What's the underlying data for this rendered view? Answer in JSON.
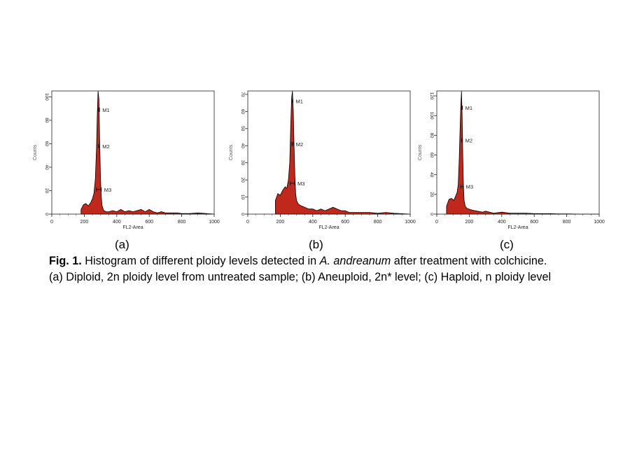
{
  "caption": {
    "lead": "Fig. 1.",
    "text1": " Histogram of different ploidy levels detected in ",
    "species": "A. andreanum",
    "text2": " after treatment with colchicine.",
    "line2": "(a) Diploid, 2n ploidy level from untreated sample; (b) Aneuploid, 2n* level; (c) Haploid, n ploidy level"
  },
  "chart_data": [
    {
      "type": "area",
      "panel_label": "(a)",
      "xlabel": "FL2-Area",
      "ylabel": "Counts",
      "xlim": [
        0,
        1000
      ],
      "ylim": [
        0,
        105
      ],
      "xticks": [
        0,
        200,
        400,
        600,
        800,
        1000
      ],
      "yticks": [
        0,
        20,
        40,
        60,
        80,
        100
      ],
      "fill_color": "#c0281c",
      "markers": [
        {
          "name": "M1",
          "x": 290,
          "y": 89,
          "half_width": 4
        },
        {
          "name": "M2",
          "x": 290,
          "y": 58,
          "half_width": 4
        },
        {
          "name": "M3",
          "x": 290,
          "y": 21,
          "half_width": 15
        }
      ],
      "x": [
        180,
        195,
        210,
        225,
        240,
        250,
        260,
        268,
        275,
        280,
        285,
        290,
        295,
        300,
        305,
        310,
        320,
        335,
        350,
        375,
        400,
        425,
        450,
        475,
        500,
        525,
        550,
        575,
        600,
        625,
        650,
        675,
        700,
        725,
        750,
        775,
        800,
        850,
        900,
        950,
        1000
      ],
      "values": [
        4,
        8,
        9,
        7,
        10,
        13,
        18,
        30,
        55,
        85,
        108,
        98,
        62,
        30,
        14,
        7,
        3,
        2,
        2,
        3,
        2,
        4,
        2,
        3,
        2,
        3,
        4,
        2,
        4,
        2,
        1,
        2,
        1,
        1,
        1,
        1,
        0.5,
        0.5,
        1,
        0.5,
        0
      ]
    },
    {
      "type": "area",
      "panel_label": "(b)",
      "xlabel": "FL2-Area",
      "ylabel": "Counts",
      "xlim": [
        0,
        1000
      ],
      "ylim": [
        0,
        72
      ],
      "xticks": [
        0,
        200,
        400,
        600,
        800,
        1000
      ],
      "yticks": [
        0,
        10,
        20,
        30,
        40,
        50,
        60,
        70
      ],
      "fill_color": "#c0281c",
      "markers": [
        {
          "name": "M1",
          "x": 275,
          "y": 66,
          "half_width": 3
        },
        {
          "name": "M2",
          "x": 275,
          "y": 41,
          "half_width": 4
        },
        {
          "name": "M3",
          "x": 275,
          "y": 18,
          "half_width": 14
        }
      ],
      "x": [
        170,
        185,
        200,
        215,
        230,
        240,
        250,
        258,
        264,
        270,
        275,
        280,
        285,
        290,
        295,
        300,
        310,
        325,
        350,
        375,
        400,
        425,
        450,
        475,
        500,
        525,
        550,
        575,
        600,
        625,
        650,
        675,
        700,
        725,
        750,
        800,
        850,
        900,
        1000
      ],
      "values": [
        8,
        12,
        11,
        14,
        16,
        15,
        20,
        30,
        50,
        68,
        74,
        60,
        40,
        22,
        12,
        8,
        6,
        5,
        4,
        3,
        3,
        2,
        3,
        2,
        3,
        4,
        3,
        2,
        2,
        1,
        1,
        1,
        1,
        1,
        1,
        0.5,
        1,
        0.5,
        0
      ]
    },
    {
      "type": "area",
      "panel_label": "(c)",
      "xlabel": "FL2-Area",
      "ylabel": "Counts",
      "xlim": [
        0,
        1000
      ],
      "ylim": [
        0,
        125
      ],
      "xticks": [
        0,
        200,
        400,
        600,
        800,
        1000
      ],
      "yticks": [
        0,
        20,
        40,
        60,
        80,
        100,
        120
      ],
      "fill_color": "#c0281c",
      "markers": [
        {
          "name": "M1",
          "x": 155,
          "y": 108,
          "half_width": 3
        },
        {
          "name": "M2",
          "x": 155,
          "y": 75,
          "half_width": 3
        },
        {
          "name": "M3",
          "x": 155,
          "y": 28,
          "half_width": 7
        }
      ],
      "x": [
        60,
        75,
        90,
        105,
        115,
        125,
        132,
        138,
        143,
        148,
        152,
        156,
        160,
        164,
        168,
        175,
        185,
        200,
        220,
        250,
        280,
        300,
        350,
        400,
        450,
        500,
        550,
        600,
        650,
        700,
        750,
        800,
        900,
        1000
      ],
      "values": [
        8,
        15,
        16,
        14,
        18,
        22,
        30,
        55,
        85,
        110,
        128,
        100,
        60,
        30,
        14,
        8,
        6,
        5,
        4,
        3,
        2,
        3,
        1,
        2,
        1,
        1,
        1,
        0.5,
        0.5,
        0.5,
        0.3,
        0.3,
        0,
        0
      ]
    }
  ]
}
